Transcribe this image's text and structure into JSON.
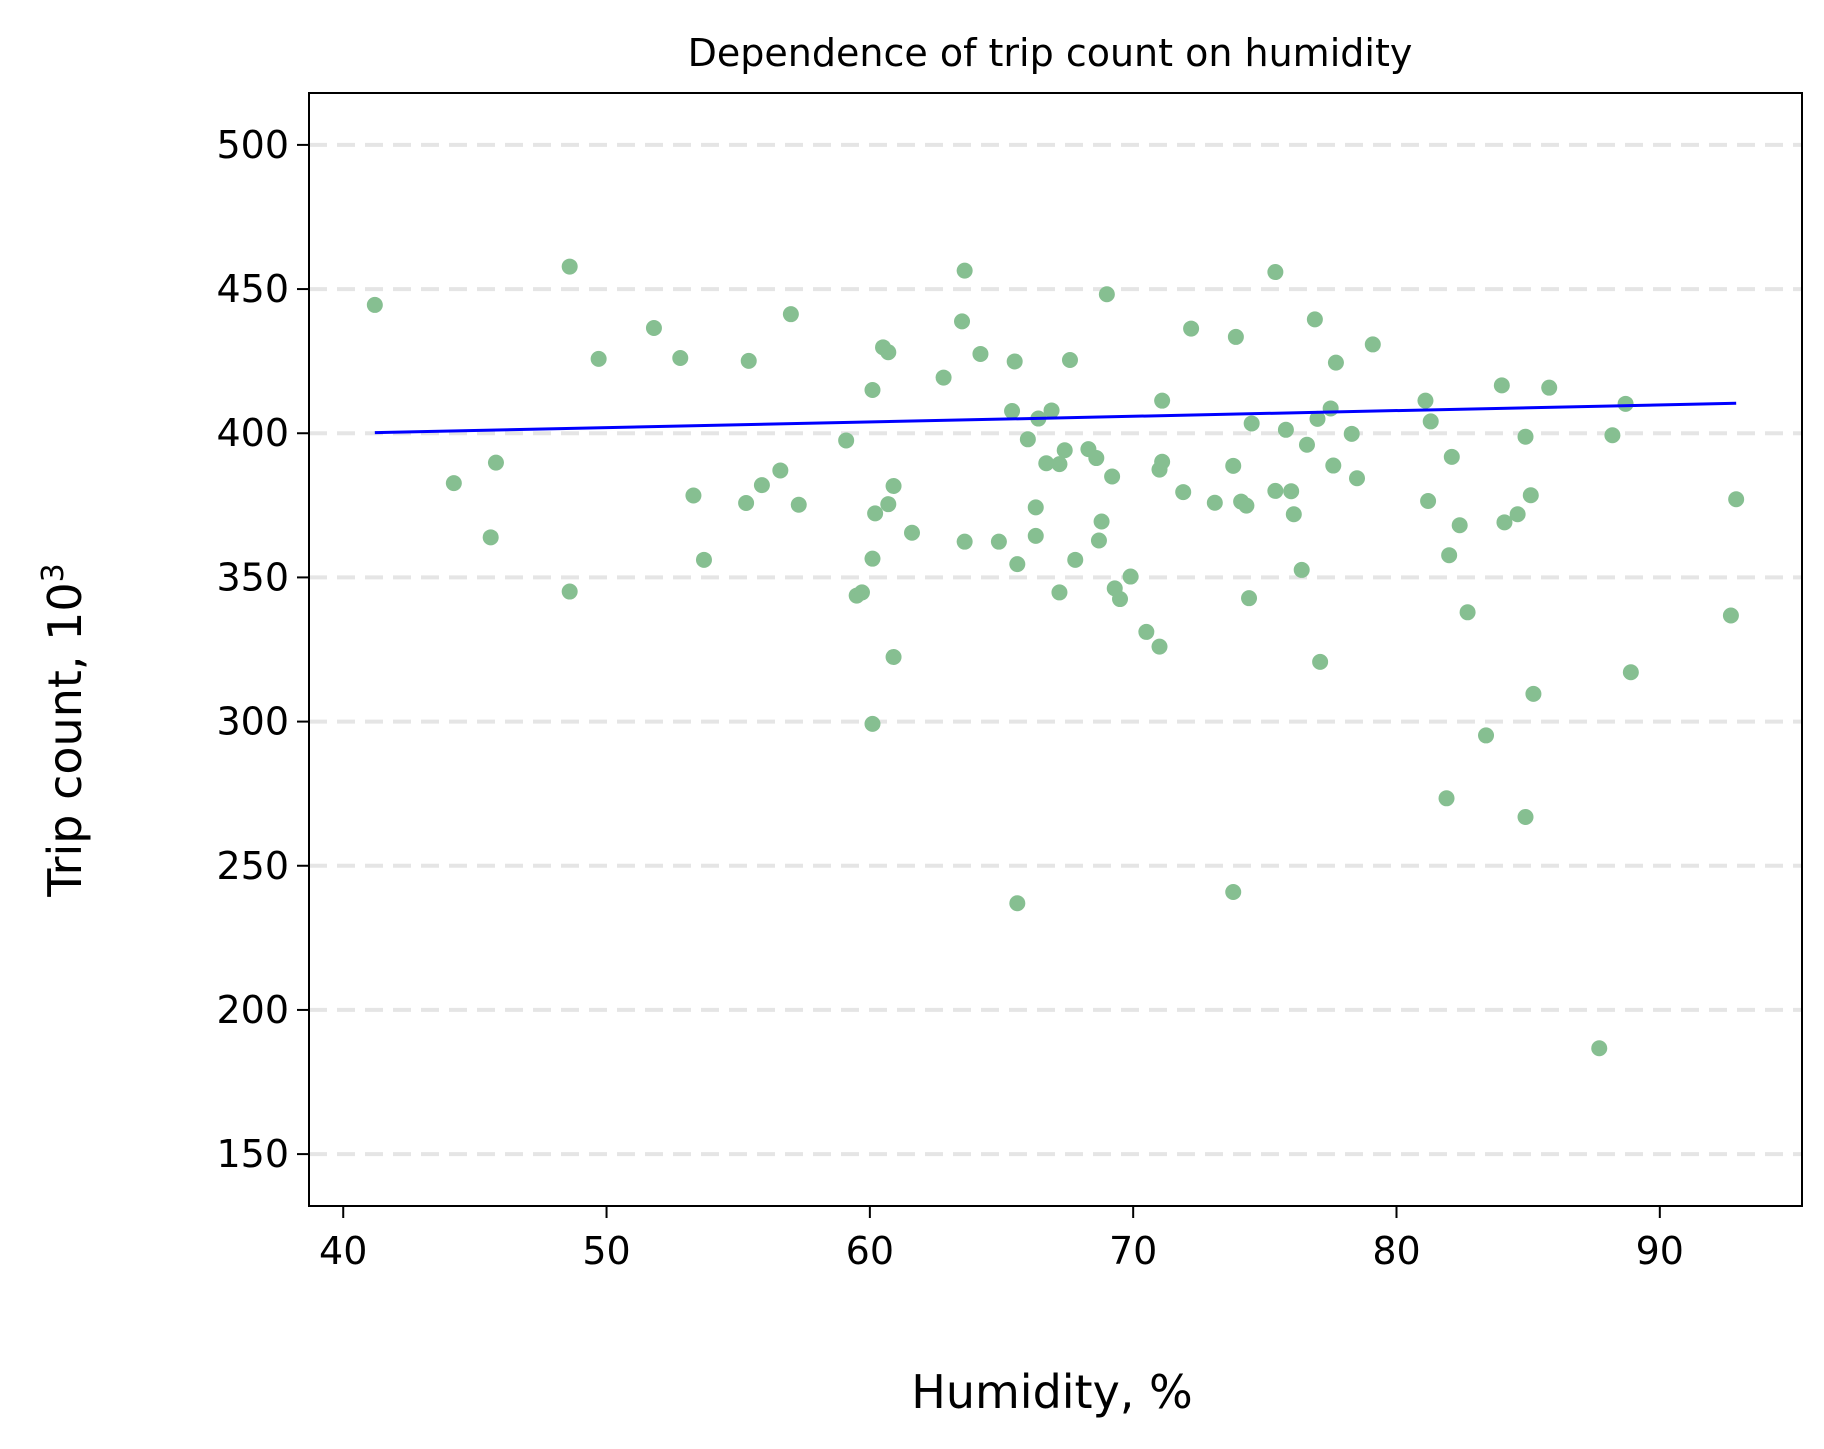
{
  "chart_data": {
    "type": "scatter",
    "title": "Dependence of trip count on humidity",
    "xlabel": "Humidity, %",
    "ylabel": "Trip count, 10",
    "ylabel_exponent": "3",
    "xlim": [
      38.7,
      95.4
    ],
    "ylim": [
      132,
      518
    ],
    "xticks": [
      40,
      50,
      60,
      70,
      80,
      90
    ],
    "yticks": [
      150,
      200,
      250,
      300,
      350,
      400,
      450,
      500
    ],
    "grid": "horizontal-dashed",
    "point_color": "#86bf91",
    "line_color": "#0000ff",
    "grid_color": "#e5e5e5",
    "trend_line": {
      "x": [
        41.2,
        92.9
      ],
      "y": [
        400.2,
        410.4
      ]
    },
    "points": [
      {
        "x": 41.2,
        "y": 444.5
      },
      {
        "x": 44.2,
        "y": 382.7
      },
      {
        "x": 45.6,
        "y": 363.9
      },
      {
        "x": 45.8,
        "y": 389.8
      },
      {
        "x": 48.6,
        "y": 457.8
      },
      {
        "x": 48.6,
        "y": 345.1
      },
      {
        "x": 49.7,
        "y": 425.8
      },
      {
        "x": 51.8,
        "y": 436.5
      },
      {
        "x": 52.8,
        "y": 426.1
      },
      {
        "x": 53.3,
        "y": 378.4
      },
      {
        "x": 53.7,
        "y": 356.1
      },
      {
        "x": 55.3,
        "y": 375.8
      },
      {
        "x": 55.4,
        "y": 425.1
      },
      {
        "x": 55.9,
        "y": 382.0
      },
      {
        "x": 56.6,
        "y": 387.1
      },
      {
        "x": 57.0,
        "y": 441.3
      },
      {
        "x": 57.3,
        "y": 375.2
      },
      {
        "x": 59.1,
        "y": 397.5
      },
      {
        "x": 59.5,
        "y": 343.7
      },
      {
        "x": 59.7,
        "y": 344.8
      },
      {
        "x": 60.1,
        "y": 415.0
      },
      {
        "x": 60.1,
        "y": 356.5
      },
      {
        "x": 60.1,
        "y": 299.2
      },
      {
        "x": 60.2,
        "y": 372.2
      },
      {
        "x": 60.5,
        "y": 429.8
      },
      {
        "x": 60.7,
        "y": 428.1
      },
      {
        "x": 60.7,
        "y": 375.4
      },
      {
        "x": 60.9,
        "y": 381.7
      },
      {
        "x": 60.9,
        "y": 322.4
      },
      {
        "x": 61.6,
        "y": 365.5
      },
      {
        "x": 62.8,
        "y": 419.3
      },
      {
        "x": 63.5,
        "y": 438.8
      },
      {
        "x": 63.6,
        "y": 456.4
      },
      {
        "x": 63.6,
        "y": 362.4
      },
      {
        "x": 64.2,
        "y": 427.5
      },
      {
        "x": 64.9,
        "y": 362.4
      },
      {
        "x": 65.4,
        "y": 407.7
      },
      {
        "x": 65.5,
        "y": 424.9
      },
      {
        "x": 65.6,
        "y": 354.6
      },
      {
        "x": 65.6,
        "y": 237.0
      },
      {
        "x": 66.0,
        "y": 397.9
      },
      {
        "x": 66.3,
        "y": 374.3
      },
      {
        "x": 66.3,
        "y": 364.4
      },
      {
        "x": 66.4,
        "y": 405.1
      },
      {
        "x": 66.7,
        "y": 389.6
      },
      {
        "x": 66.9,
        "y": 407.9
      },
      {
        "x": 67.2,
        "y": 389.3
      },
      {
        "x": 67.2,
        "y": 344.8
      },
      {
        "x": 67.4,
        "y": 394.1
      },
      {
        "x": 67.6,
        "y": 425.4
      },
      {
        "x": 67.8,
        "y": 356.1
      },
      {
        "x": 68.3,
        "y": 394.5
      },
      {
        "x": 68.6,
        "y": 391.4
      },
      {
        "x": 68.7,
        "y": 362.8
      },
      {
        "x": 68.8,
        "y": 369.4
      },
      {
        "x": 69.0,
        "y": 448.2
      },
      {
        "x": 69.2,
        "y": 385.0
      },
      {
        "x": 69.3,
        "y": 346.2
      },
      {
        "x": 69.5,
        "y": 342.5
      },
      {
        "x": 69.9,
        "y": 350.3
      },
      {
        "x": 70.5,
        "y": 331.1
      },
      {
        "x": 71.0,
        "y": 326.0
      },
      {
        "x": 71.0,
        "y": 387.4
      },
      {
        "x": 71.1,
        "y": 411.3
      },
      {
        "x": 71.1,
        "y": 390.1
      },
      {
        "x": 71.9,
        "y": 379.6
      },
      {
        "x": 72.2,
        "y": 436.3
      },
      {
        "x": 73.1,
        "y": 375.9
      },
      {
        "x": 73.8,
        "y": 388.7
      },
      {
        "x": 73.8,
        "y": 240.9
      },
      {
        "x": 73.9,
        "y": 433.4
      },
      {
        "x": 74.1,
        "y": 376.3
      },
      {
        "x": 74.3,
        "y": 374.9
      },
      {
        "x": 74.4,
        "y": 342.8
      },
      {
        "x": 74.5,
        "y": 403.4
      },
      {
        "x": 75.4,
        "y": 455.9
      },
      {
        "x": 75.4,
        "y": 380.0
      },
      {
        "x": 75.8,
        "y": 401.2
      },
      {
        "x": 76.0,
        "y": 379.9
      },
      {
        "x": 76.1,
        "y": 371.9
      },
      {
        "x": 76.4,
        "y": 352.6
      },
      {
        "x": 76.6,
        "y": 396.0
      },
      {
        "x": 76.9,
        "y": 439.5
      },
      {
        "x": 77.0,
        "y": 405.0
      },
      {
        "x": 77.1,
        "y": 320.7
      },
      {
        "x": 77.5,
        "y": 408.6
      },
      {
        "x": 77.6,
        "y": 388.8
      },
      {
        "x": 77.7,
        "y": 424.5
      },
      {
        "x": 78.3,
        "y": 399.8
      },
      {
        "x": 78.5,
        "y": 384.4
      },
      {
        "x": 79.1,
        "y": 430.8
      },
      {
        "x": 81.1,
        "y": 411.3
      },
      {
        "x": 81.2,
        "y": 376.5
      },
      {
        "x": 81.3,
        "y": 404.1
      },
      {
        "x": 81.9,
        "y": 273.4
      },
      {
        "x": 82.0,
        "y": 357.7
      },
      {
        "x": 82.1,
        "y": 391.8
      },
      {
        "x": 82.4,
        "y": 368.1
      },
      {
        "x": 82.7,
        "y": 337.9
      },
      {
        "x": 83.4,
        "y": 295.2
      },
      {
        "x": 84.0,
        "y": 416.6
      },
      {
        "x": 84.1,
        "y": 369.1
      },
      {
        "x": 84.6,
        "y": 371.9
      },
      {
        "x": 84.9,
        "y": 398.8
      },
      {
        "x": 84.9,
        "y": 266.9
      },
      {
        "x": 85.1,
        "y": 378.5
      },
      {
        "x": 85.2,
        "y": 309.6
      },
      {
        "x": 85.8,
        "y": 415.8
      },
      {
        "x": 87.7,
        "y": 186.7
      },
      {
        "x": 88.2,
        "y": 399.3
      },
      {
        "x": 88.7,
        "y": 410.2
      },
      {
        "x": 88.9,
        "y": 317.1
      },
      {
        "x": 92.7,
        "y": 336.8
      },
      {
        "x": 92.9,
        "y": 377.1
      }
    ]
  }
}
